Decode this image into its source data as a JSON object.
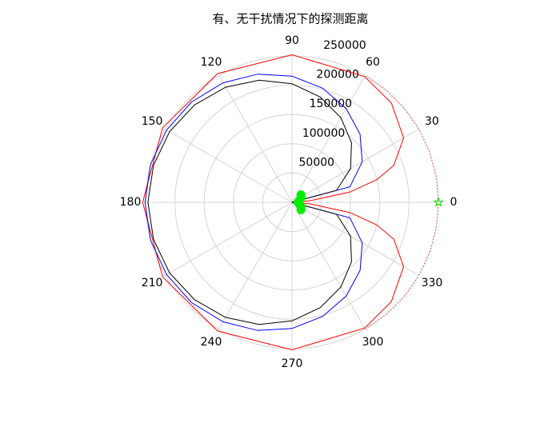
{
  "chart_data": {
    "type": "polar",
    "title": "有、无干扰情况下的探测距离",
    "rlim": [
      0,
      250000
    ],
    "rticks": [
      50000,
      100000,
      150000,
      200000,
      250000
    ],
    "thetaticks": [
      0,
      30,
      60,
      90,
      120,
      150,
      180,
      210,
      240,
      270,
      300,
      330
    ],
    "grid": true,
    "series": [
      {
        "color": "#ff0000",
        "style": "solid",
        "theta": [
          0,
          5,
          10,
          15,
          20,
          30,
          45,
          60,
          90,
          120,
          150,
          180,
          210,
          240,
          270,
          300,
          315,
          330,
          340,
          345,
          350,
          355,
          360
        ],
        "r": [
          0,
          30000,
          100000,
          150000,
          185000,
          220000,
          240000,
          248000,
          252000,
          254000,
          255000,
          255000,
          255000,
          254000,
          252000,
          248000,
          240000,
          220000,
          185000,
          150000,
          100000,
          30000,
          0
        ]
      },
      {
        "color": "#ff0000",
        "style": "dotted",
        "theta": [
          -60,
          -50,
          -40,
          -30,
          -20,
          -10,
          0,
          10,
          20,
          30,
          40,
          50,
          60
        ],
        "r": [
          250000,
          250000,
          250000,
          250000,
          250000,
          250000,
          250000,
          250000,
          250000,
          250000,
          250000,
          250000,
          250000
        ]
      },
      {
        "color": "#0000ff",
        "style": "solid",
        "theta": [
          0,
          15,
          30,
          45,
          60,
          75,
          90,
          105,
          120,
          135,
          150,
          165,
          180,
          195,
          210,
          225,
          240,
          255,
          270,
          285,
          300,
          315,
          330,
          345,
          360
        ],
        "r": [
          0,
          102400,
          138500,
          164500,
          185000,
          201800,
          215600,
          226700,
          235700,
          242400,
          247200,
          250100,
          251000,
          250100,
          247200,
          242400,
          235700,
          226700,
          215600,
          201800,
          185000,
          164500,
          138500,
          102400,
          0
        ]
      },
      {
        "color": "#000000",
        "style": "solid",
        "theta": [
          0,
          15,
          30,
          45,
          60,
          75,
          90,
          105,
          120,
          135,
          150,
          165,
          180,
          195,
          210,
          225,
          240,
          255,
          270,
          285,
          300,
          315,
          330,
          345,
          360
        ],
        "r": [
          0,
          78700,
          115400,
          143700,
          166900,
          186300,
          202600,
          216100,
          227000,
          235300,
          241300,
          244800,
          246000,
          244800,
          241300,
          235300,
          227000,
          216100,
          202600,
          186300,
          166900,
          143700,
          115400,
          78700,
          0
        ]
      },
      {
        "color": "#00dd00",
        "marker": "star",
        "theta": [
          0
        ],
        "r": [
          250000
        ]
      },
      {
        "color": "#00ee00",
        "marker": "dot",
        "theta": [
          -40,
          -30,
          -20,
          -10,
          0,
          10,
          20,
          30,
          40
        ],
        "r": [
          20000,
          18000,
          15000,
          12000,
          10000,
          12000,
          15000,
          18000,
          20000
        ]
      }
    ]
  }
}
